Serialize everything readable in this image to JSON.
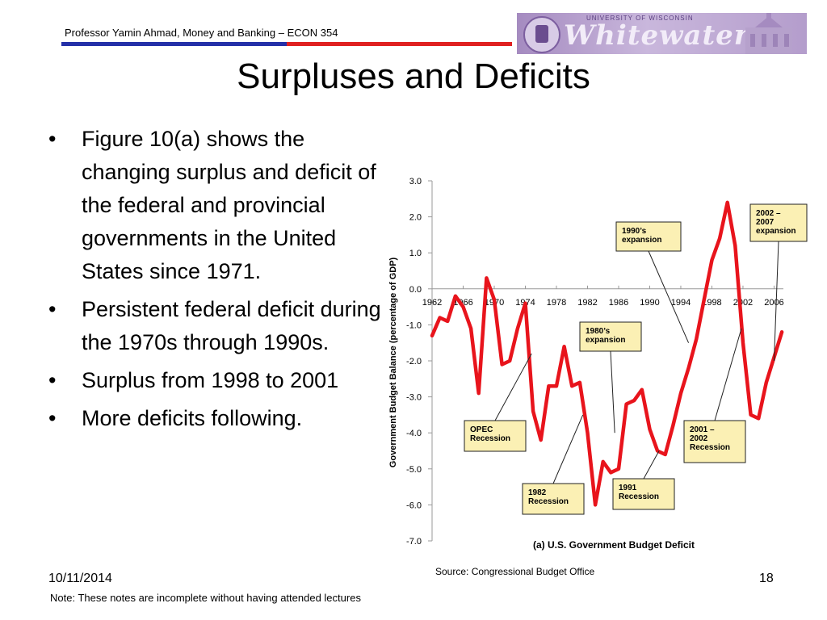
{
  "header": {
    "course_text": "Professor Yamin Ahmad, Money and Banking – ECON 354",
    "logo_top_text": "UNIVERSITY OF WISCONSIN",
    "logo_word": "Whitewater",
    "rule_colors": [
      "#2430a8",
      "#e02020"
    ]
  },
  "slide": {
    "title": "Surpluses and Deficits",
    "bullets": [
      "Figure 10(a) shows the changing surplus and deficit of the federal and provincial governments in the United States since 1971.",
      "Persistent federal deficit during the 1970s through 1990s.",
      "Surplus from 1998 to 2001",
      "More deficits following."
    ]
  },
  "chart_data": {
    "type": "line",
    "title": "(a) U.S. Government Budget Deficit",
    "ylabel": "Government Budget Balance (percentage of GDP)",
    "xlabel": "",
    "xlim": [
      1962,
      2007.2
    ],
    "ylim": [
      -7.0,
      3.0
    ],
    "x_ticks": [
      1962,
      1966,
      1970,
      1974,
      1978,
      1982,
      1986,
      1990,
      1994,
      1998,
      2002,
      2006
    ],
    "y_ticks": [
      3.0,
      2.0,
      1.0,
      0.0,
      -1.0,
      -2.0,
      -3.0,
      -4.0,
      -5.0,
      -6.0,
      -7.0
    ],
    "y_tick_labels": [
      "3.0",
      "2.0",
      "1.0",
      "0.0",
      "-1.0",
      "-2.0",
      "-3.0",
      "-4.0",
      "-5.0",
      "-6.0",
      "-7.0"
    ],
    "grid": false,
    "series": [
      {
        "name": "",
        "color": "#e8141c",
        "x": [
          1962,
          1963,
          1964,
          1965,
          1966,
          1967,
          1968,
          1969,
          1970,
          1971,
          1972,
          1973,
          1974,
          1975,
          1976,
          1977,
          1978,
          1979,
          1980,
          1981,
          1982,
          1983,
          1984,
          1985,
          1986,
          1987,
          1988,
          1989,
          1990,
          1991,
          1992,
          1993,
          1994,
          1995,
          1996,
          1997,
          1998,
          1999,
          2000,
          2001,
          2002,
          2003,
          2004,
          2005,
          2006,
          2007
        ],
        "y": [
          -1.3,
          -0.8,
          -0.9,
          -0.2,
          -0.5,
          -1.1,
          -2.9,
          0.3,
          -0.3,
          -2.1,
          -2.0,
          -1.1,
          -0.4,
          -3.4,
          -4.2,
          -2.7,
          -2.7,
          -1.6,
          -2.7,
          -2.6,
          -4.0,
          -6.0,
          -4.8,
          -5.1,
          -5.0,
          -3.2,
          -3.1,
          -2.8,
          -3.9,
          -4.5,
          -4.6,
          -3.8,
          -2.9,
          -2.2,
          -1.4,
          -0.3,
          0.8,
          1.4,
          2.4,
          1.2,
          -1.5,
          -3.5,
          -3.6,
          -2.6,
          -1.9,
          -1.2
        ]
      }
    ],
    "annotations": [
      {
        "text": [
          "1990’s",
          "expansion"
        ],
        "point_to": [
          1995,
          -1.5
        ]
      },
      {
        "text": [
          "2002 –",
          "2007",
          "expansion"
        ],
        "point_to": [
          2006,
          -2.0
        ]
      },
      {
        "text": [
          "1980’s",
          "expansion"
        ],
        "point_to": [
          1985.5,
          -4.0
        ]
      },
      {
        "text": [
          "OPEC",
          "Recession"
        ],
        "point_to": [
          1974.8,
          -1.8
        ]
      },
      {
        "text": [
          "2001 –",
          "2002",
          "Recession"
        ],
        "point_to": [
          2001.8,
          -1.1
        ]
      },
      {
        "text": [
          "1991",
          "Recession"
        ],
        "point_to": [
          1991.2,
          -4.5
        ]
      },
      {
        "text": [
          "1982",
          "Recession"
        ],
        "point_to": [
          1981.4,
          -3.5
        ]
      }
    ],
    "source": "Source: Congressional Budget Office"
  },
  "footer": {
    "date": "10/11/2014",
    "page_number": "18",
    "note": "Note: These notes are incomplete without having attended lectures"
  }
}
